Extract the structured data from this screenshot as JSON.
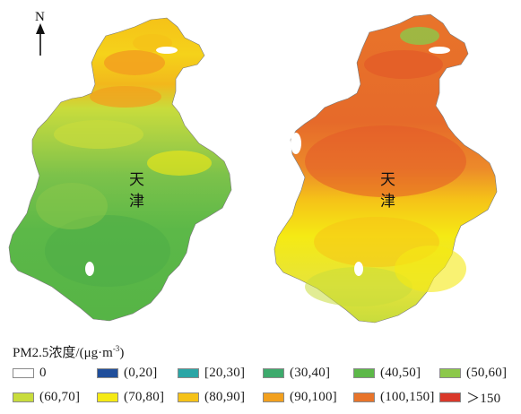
{
  "maps": {
    "north_label": "N",
    "left_map": {
      "city_label_line1": "天",
      "city_label_line2": "津"
    },
    "right_map": {
      "city_label_line1": "天",
      "city_label_line2": "津"
    }
  },
  "legend": {
    "title": "PM2.5浓度/(μg·m",
    "title_superscript": "-3",
    "title_suffix": ")",
    "items": [
      {
        "label": "0",
        "color": "#ffffff"
      },
      {
        "label": "(0,20]",
        "color": "#1f4e9b"
      },
      {
        "label": "[20,30]",
        "color": "#2aa6a6"
      },
      {
        "label": "(30,40]",
        "color": "#3daa6c"
      },
      {
        "label": "(40,50]",
        "color": "#5cb848"
      },
      {
        "label": "(50,60]",
        "color": "#8cc84a"
      },
      {
        "label": "(60,70]",
        "color": "#c8dc3c"
      },
      {
        "label": "(70,80]",
        "color": "#f5ea14"
      },
      {
        "label": "(80,90]",
        "color": "#f5c218"
      },
      {
        "label": "(90,100]",
        "color": "#f2a01e"
      },
      {
        "label": "(100,150]",
        "color": "#e8742a"
      },
      {
        "label": "＞150",
        "color": "#d9382a"
      }
    ]
  }
}
